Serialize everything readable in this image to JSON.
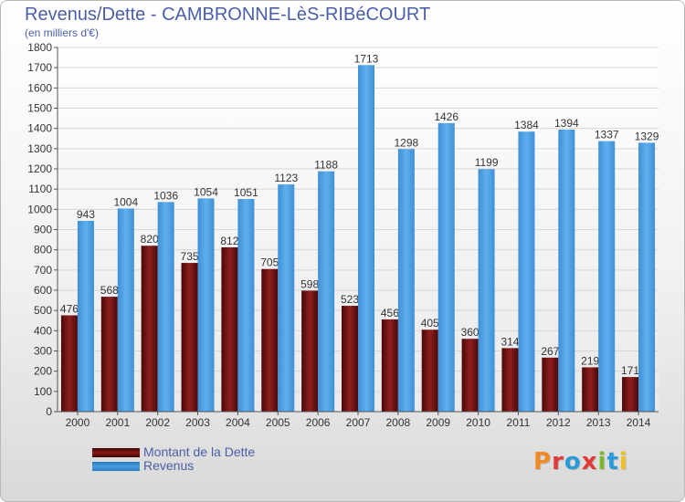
{
  "chart_data": {
    "type": "bar",
    "title": "Revenus/Dette - CAMBRONNE-LèS-RIBéCOURT",
    "subtitle": "(en milliers d'€)",
    "categories": [
      "2000",
      "2001",
      "2002",
      "2003",
      "2004",
      "2005",
      "2006",
      "2007",
      "2008",
      "2009",
      "2010",
      "2011",
      "2012",
      "2013",
      "2014"
    ],
    "series": [
      {
        "name": "Montant de la Dette",
        "color": "#8b1a1a",
        "values": [
          476,
          568,
          820,
          735,
          812,
          705,
          598,
          523,
          456,
          405,
          360,
          314,
          267,
          219,
          171
        ]
      },
      {
        "name": "Revenus",
        "color": "#4a9de2",
        "values": [
          943,
          1004,
          1036,
          1054,
          1051,
          1123,
          1188,
          1713,
          1298,
          1426,
          1199,
          1384,
          1394,
          1337,
          1329
        ]
      }
    ],
    "ylim": [
      0,
      1800
    ],
    "yticks": [
      0,
      100,
      200,
      300,
      400,
      500,
      600,
      700,
      800,
      900,
      1000,
      1100,
      1200,
      1300,
      1400,
      1500,
      1600,
      1700,
      1800
    ],
    "grid": true,
    "legend": "bottom-left"
  },
  "logo": {
    "text": "Proxiti",
    "colors": [
      "#f08a24",
      "#e03a3a",
      "#2a9ad8",
      "#e03a3a",
      "#7ab82e",
      "#2a9ad8",
      "#f0c020"
    ]
  }
}
